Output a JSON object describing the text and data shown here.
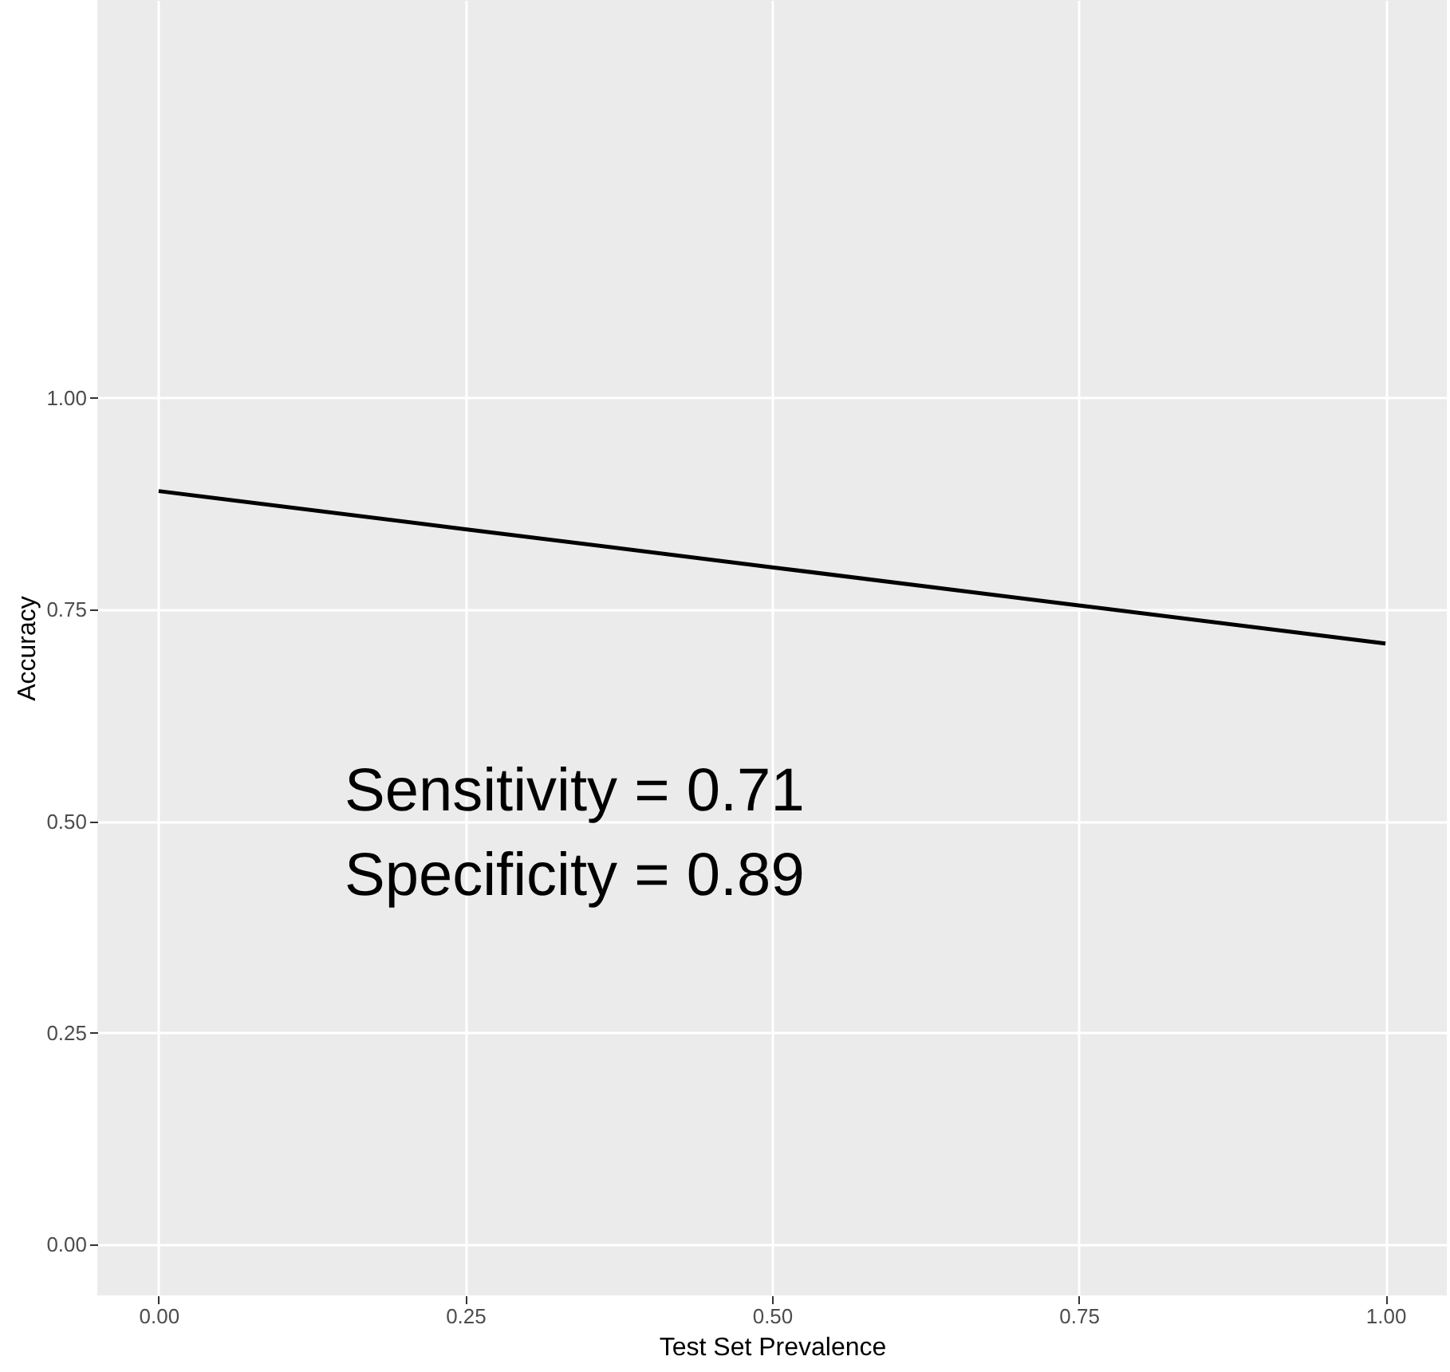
{
  "chart_data": {
    "type": "line",
    "xlabel": "Test Set Prevalence",
    "ylabel": "Accuracy",
    "x": [
      0,
      0.25,
      0.5,
      0.75,
      1
    ],
    "series": [
      {
        "color": "#000000",
        "values": [
          0.89,
          0.845,
          0.8,
          0.755,
          0.71
        ]
      }
    ],
    "xlim": [
      -0.05,
      1.05
    ],
    "xticks": [
      {
        "value": 0,
        "label": "0.00"
      },
      {
        "value": 0.25,
        "label": "0.25"
      },
      {
        "value": 0.5,
        "label": "0.50"
      },
      {
        "value": 0.75,
        "label": "0.75"
      },
      {
        "value": 1,
        "label": "1.00"
      }
    ],
    "ylim": [
      -0.06,
      1.47
    ],
    "yticks": [
      {
        "value": 0,
        "label": "0.00"
      },
      {
        "value": 0.25,
        "label": "0.25"
      },
      {
        "value": 0.5,
        "label": "0.50"
      },
      {
        "value": 0.75,
        "label": "0.75"
      },
      {
        "value": 1,
        "label": "1.00"
      }
    ],
    "grid": true,
    "line_style": "solid",
    "marker": "none",
    "annotations": [
      "Sensitivity = 0.71",
      "Specificity = 0.89"
    ]
  }
}
